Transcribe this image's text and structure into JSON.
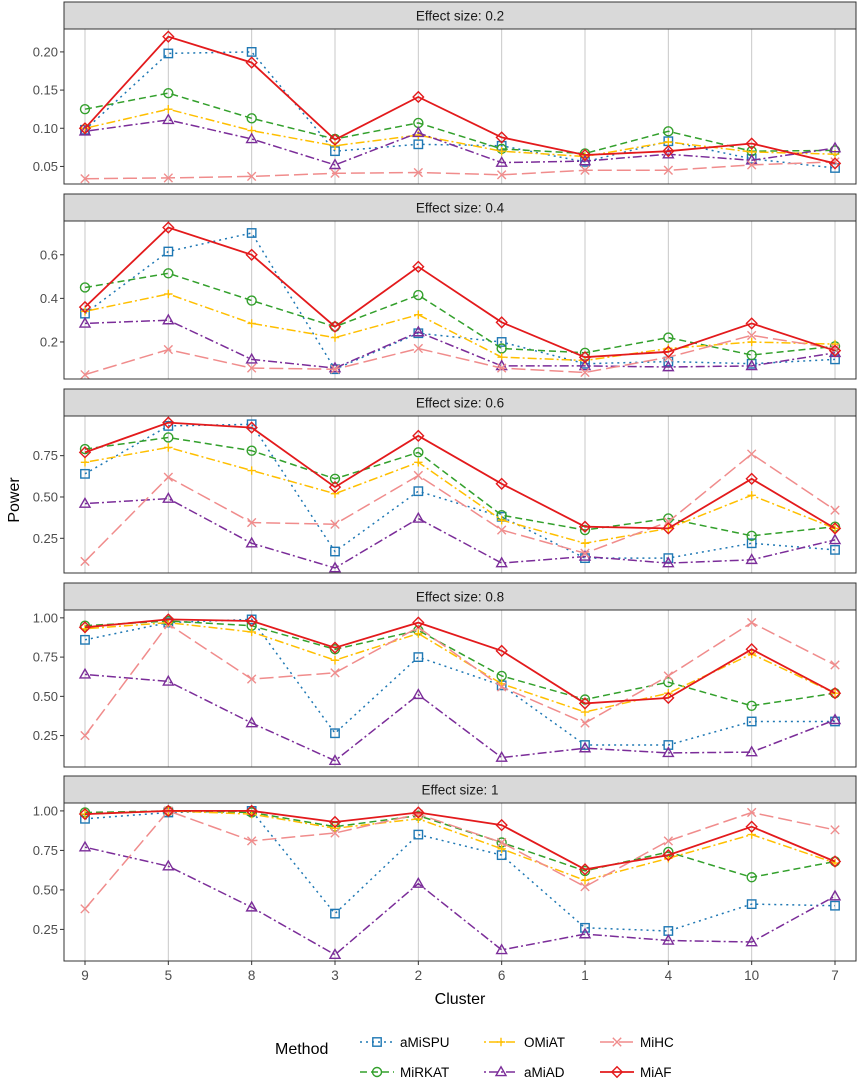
{
  "chart_data": {
    "type": "line",
    "ylabel": "Power",
    "xlabel": "Cluster",
    "categories": [
      "9",
      "5",
      "8",
      "3",
      "2",
      "6",
      "1",
      "4",
      "10",
      "7"
    ],
    "legend_title": "Method",
    "legend_position": "bottom",
    "methods": [
      {
        "name": "aMiSPU",
        "color": "#1f78b4",
        "marker": "square",
        "dash": "dotted"
      },
      {
        "name": "MiRKAT",
        "color": "#33a02c",
        "marker": "circle",
        "dash": "dashed"
      },
      {
        "name": "OMiAT",
        "color": "#ffbf00",
        "marker": "plus",
        "dash": "dotdash"
      },
      {
        "name": "aMiAD",
        "color": "#7b2d99",
        "marker": "triangle",
        "dash": "dotdash2"
      },
      {
        "name": "MiHC",
        "color": "#f08c8c",
        "marker": "cross",
        "dash": "longdash"
      },
      {
        "name": "MiAF",
        "color": "#e31a1c",
        "marker": "diamond",
        "dash": "solid"
      }
    ],
    "panels": [
      {
        "title": "Effect size: 0.2",
        "ylim": [
          0.027,
          0.23
        ],
        "yticks": [
          "0.05",
          "0.10",
          "0.15",
          "0.20"
        ],
        "series": {
          "aMiSPU": [
            0.098,
            0.198,
            0.2,
            0.07,
            0.079,
            0.077,
            0.056,
            0.083,
            0.06,
            0.048
          ],
          "MiRKAT": [
            0.125,
            0.146,
            0.113,
            0.086,
            0.107,
            0.073,
            0.067,
            0.096,
            0.07,
            0.071
          ],
          "OMiAT": [
            0.1,
            0.125,
            0.097,
            0.077,
            0.091,
            0.07,
            0.063,
            0.082,
            0.069,
            0.066
          ],
          "aMiAD": [
            0.096,
            0.111,
            0.086,
            0.052,
            0.094,
            0.055,
            0.057,
            0.066,
            0.058,
            0.074
          ],
          "MiHC": [
            0.034,
            0.035,
            0.037,
            0.041,
            0.042,
            0.039,
            0.045,
            0.045,
            0.052,
            0.056
          ],
          "MiAF": [
            0.1,
            0.22,
            0.186,
            0.085,
            0.141,
            0.088,
            0.065,
            0.07,
            0.08,
            0.054
          ]
        }
      },
      {
        "title": "Effect size: 0.4",
        "ylim": [
          0.03,
          0.755
        ],
        "yticks": [
          "0.2",
          "0.4",
          "0.6"
        ],
        "series": {
          "aMiSPU": [
            0.33,
            0.615,
            0.7,
            0.075,
            0.24,
            0.2,
            0.1,
            0.11,
            0.1,
            0.12
          ],
          "MiRKAT": [
            0.45,
            0.515,
            0.39,
            0.27,
            0.415,
            0.17,
            0.15,
            0.22,
            0.14,
            0.18
          ],
          "OMiAT": [
            0.34,
            0.42,
            0.285,
            0.22,
            0.325,
            0.13,
            0.115,
            0.17,
            0.2,
            0.19
          ],
          "aMiAD": [
            0.285,
            0.3,
            0.12,
            0.08,
            0.245,
            0.09,
            0.09,
            0.085,
            0.09,
            0.15
          ],
          "MiHC": [
            0.05,
            0.165,
            0.08,
            0.075,
            0.17,
            0.08,
            0.06,
            0.13,
            0.23,
            0.17
          ],
          "MiAF": [
            0.36,
            0.725,
            0.6,
            0.27,
            0.545,
            0.29,
            0.13,
            0.155,
            0.285,
            0.16
          ]
        }
      },
      {
        "title": "Effect size: 0.6",
        "ylim": [
          0.04,
          0.99
        ],
        "yticks": [
          "0.25",
          "0.50",
          "0.75"
        ],
        "series": {
          "aMiSPU": [
            0.64,
            0.93,
            0.94,
            0.17,
            0.535,
            0.38,
            0.13,
            0.13,
            0.22,
            0.18
          ],
          "MiRKAT": [
            0.79,
            0.86,
            0.78,
            0.61,
            0.77,
            0.39,
            0.3,
            0.37,
            0.265,
            0.32
          ],
          "OMiAT": [
            0.71,
            0.8,
            0.66,
            0.52,
            0.71,
            0.36,
            0.22,
            0.31,
            0.51,
            0.31
          ],
          "aMiAD": [
            0.46,
            0.49,
            0.22,
            0.07,
            0.37,
            0.1,
            0.14,
            0.1,
            0.12,
            0.24
          ],
          "MiHC": [
            0.11,
            0.62,
            0.345,
            0.335,
            0.63,
            0.3,
            0.16,
            0.35,
            0.76,
            0.42
          ],
          "MiAF": [
            0.77,
            0.95,
            0.92,
            0.56,
            0.87,
            0.58,
            0.32,
            0.31,
            0.61,
            0.31
          ]
        }
      },
      {
        "title": "Effect size: 0.8",
        "ylim": [
          0.05,
          1.05
        ],
        "yticks": [
          "0.25",
          "0.50",
          "0.75",
          "1.00"
        ],
        "series": {
          "aMiSPU": [
            0.86,
            0.97,
            0.99,
            0.265,
            0.75,
            0.57,
            0.19,
            0.19,
            0.34,
            0.34
          ],
          "MiRKAT": [
            0.95,
            0.98,
            0.95,
            0.8,
            0.92,
            0.63,
            0.48,
            0.59,
            0.44,
            0.52
          ],
          "OMiAT": [
            0.93,
            0.97,
            0.91,
            0.73,
            0.9,
            0.58,
            0.4,
            0.52,
            0.77,
            0.52
          ],
          "aMiAD": [
            0.64,
            0.595,
            0.33,
            0.09,
            0.51,
            0.11,
            0.17,
            0.14,
            0.145,
            0.35
          ],
          "MiHC": [
            0.25,
            0.96,
            0.61,
            0.65,
            0.94,
            0.56,
            0.33,
            0.63,
            0.97,
            0.7
          ],
          "MiAF": [
            0.94,
            0.99,
            0.98,
            0.81,
            0.97,
            0.79,
            0.455,
            0.49,
            0.8,
            0.52
          ]
        }
      },
      {
        "title": "Effect size: 1",
        "ylim": [
          0.05,
          1.05
        ],
        "yticks": [
          "0.25",
          "0.50",
          "0.75",
          "1.00"
        ],
        "series": {
          "aMiSPU": [
            0.95,
            0.99,
            1.0,
            0.35,
            0.85,
            0.72,
            0.26,
            0.24,
            0.41,
            0.4
          ],
          "MiRKAT": [
            0.99,
            1.0,
            0.99,
            0.9,
            0.97,
            0.8,
            0.62,
            0.74,
            0.58,
            0.68
          ],
          "OMiAT": [
            0.98,
            1.0,
            0.98,
            0.89,
            0.95,
            0.76,
            0.56,
            0.7,
            0.85,
            0.67
          ],
          "aMiAD": [
            0.77,
            0.65,
            0.39,
            0.09,
            0.54,
            0.12,
            0.22,
            0.18,
            0.17,
            0.46
          ],
          "MiHC": [
            0.38,
            1.0,
            0.81,
            0.86,
            0.98,
            0.8,
            0.52,
            0.81,
            0.99,
            0.88
          ],
          "MiAF": [
            0.98,
            1.0,
            1.0,
            0.93,
            0.99,
            0.91,
            0.63,
            0.72,
            0.9,
            0.68
          ]
        }
      }
    ]
  }
}
